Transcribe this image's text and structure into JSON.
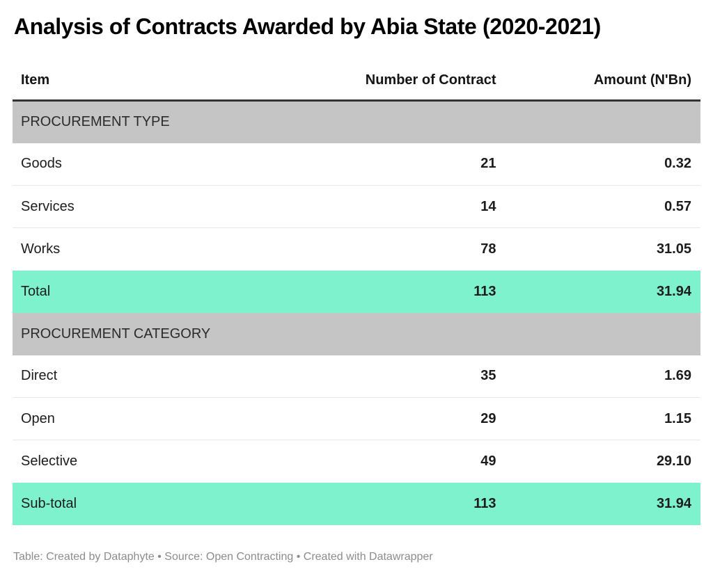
{
  "title": "Analysis of Contracts Awarded by Abia State (2020-2021)",
  "footer": "Table: Created by Dataphyte • Source: Open Contracting • Created with Datawrapper",
  "colors": {
    "highlight_row": "#7ef2cc",
    "section_row": "#c5c5c5",
    "header_rule": "#333333",
    "row_divider": "#e9e9e9",
    "footer_text": "#8c8c8c"
  },
  "chart_data": {
    "type": "table",
    "title": "Analysis of Contracts Awarded by Abia State (2020-2021)",
    "columns": [
      "Item",
      "Number of Contract",
      "Amount (N'Bn)"
    ],
    "rows": [
      {
        "kind": "section",
        "item": "PROCUREMENT TYPE",
        "contracts": "",
        "amount": ""
      },
      {
        "kind": "data",
        "item": "Goods",
        "contracts": "21",
        "amount": "0.32"
      },
      {
        "kind": "data",
        "item": "Services",
        "contracts": "14",
        "amount": "0.57"
      },
      {
        "kind": "data",
        "item": "Works",
        "contracts": "78",
        "amount": "31.05"
      },
      {
        "kind": "total",
        "item": "Total",
        "contracts": "113",
        "amount": "31.94"
      },
      {
        "kind": "section",
        "item": "PROCUREMENT CATEGORY",
        "contracts": "",
        "amount": ""
      },
      {
        "kind": "data",
        "item": "Direct",
        "contracts": "35",
        "amount": "1.69"
      },
      {
        "kind": "data",
        "item": "Open",
        "contracts": "29",
        "amount": "1.15"
      },
      {
        "kind": "data",
        "item": "Selective",
        "contracts": "49",
        "amount": "29.10"
      },
      {
        "kind": "total",
        "item": "Sub-total",
        "contracts": "113",
        "amount": "31.94"
      }
    ]
  }
}
